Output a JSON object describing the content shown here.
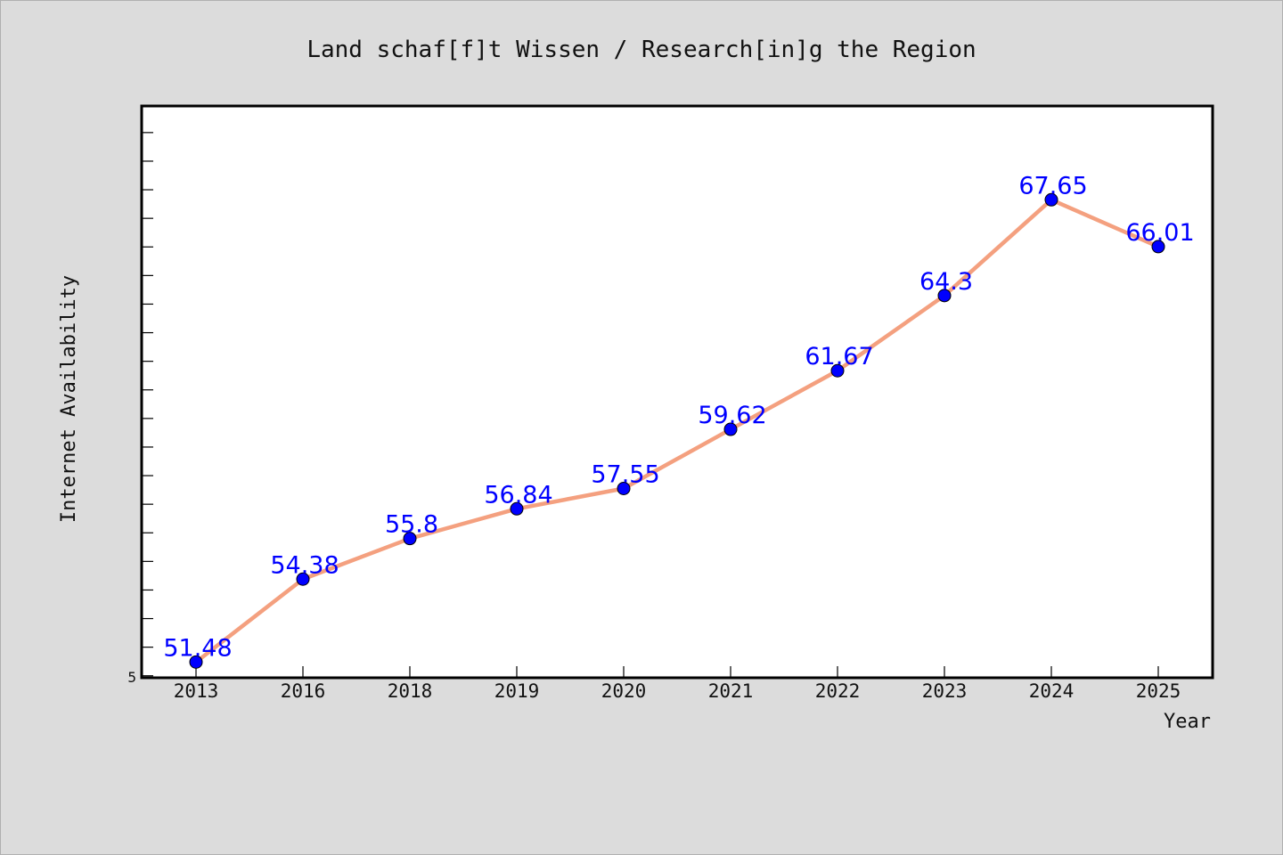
{
  "chart_data": {
    "type": "line",
    "title": "Land schaf[f]t Wissen / Research[in]g the Region",
    "xlabel": "Year",
    "ylabel": "Internet Availability",
    "categories": [
      "2013",
      "2016",
      "2018",
      "2019",
      "2020",
      "2021",
      "2022",
      "2023",
      "2024",
      "2025"
    ],
    "series": [
      {
        "values": [
          51.48,
          54.38,
          55.8,
          56.84,
          57.55,
          59.62,
          61.67,
          64.3,
          67.65,
          66.01
        ]
      }
    ],
    "data_labels": [
      "51.48",
      "54.38",
      "55.8",
      "56.84",
      "57.55",
      "59.62",
      "61.67",
      "64.3",
      "67.65",
      "66.01"
    ],
    "y_tick_labels": [
      "5"
    ],
    "ylim": [
      50.93,
      70.93
    ],
    "y_minor_tick_step": 1,
    "grid": false,
    "legend": "none",
    "colors": {
      "line": "#f4a07f",
      "marker": "#0000ff",
      "data_label": "#0000ff",
      "plot_background": "#ffffff",
      "figure_background": "#dcdcdc"
    }
  }
}
